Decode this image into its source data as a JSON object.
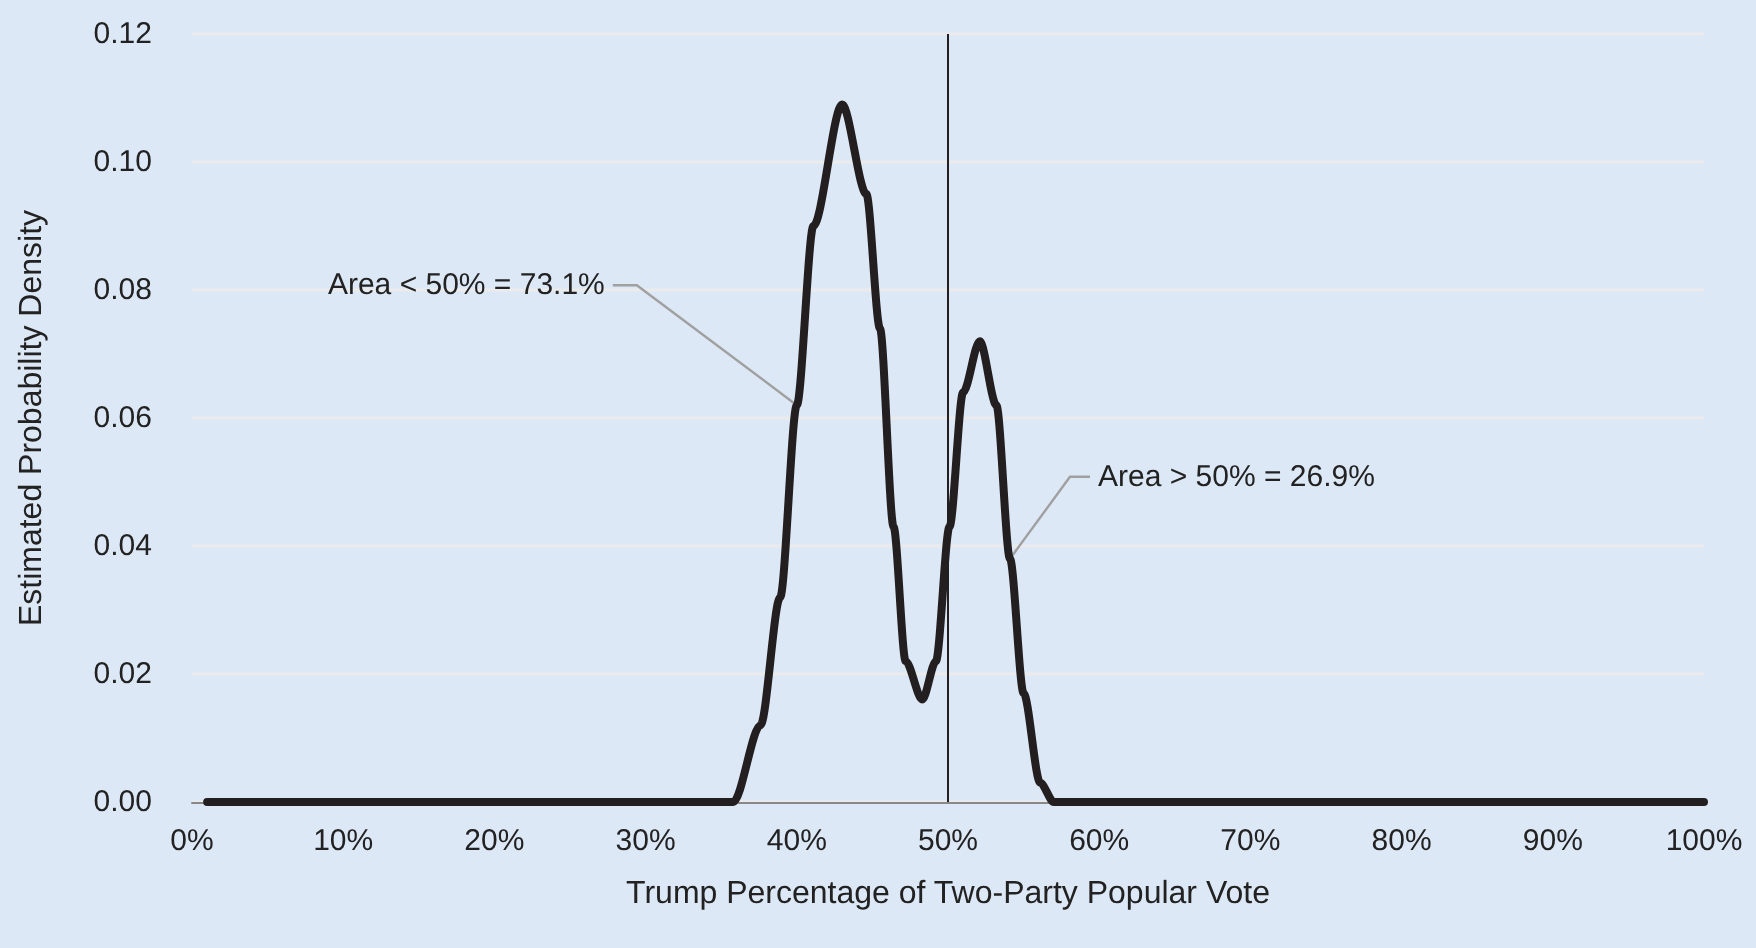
{
  "chart_data": {
    "type": "line",
    "xlabel": "Trump Percentage of Two-Party Popular Vote",
    "ylabel": "Estimated Probability Density",
    "x": [
      1,
      35.8,
      37.6,
      38.9,
      40.0,
      41.1,
      43.0,
      44.6,
      45.5,
      46.4,
      47.2,
      48.3,
      49.2,
      50.1,
      51.0,
      52.1,
      53.2,
      54.1,
      55.0,
      56.1,
      57.0,
      100
    ],
    "series": [
      {
        "color": "#231f20",
        "values": [
          0,
          0,
          0.012,
          0.032,
          0.062,
          0.09,
          0.109,
          0.095,
          0.074,
          0.043,
          0.022,
          0.016,
          0.022,
          0.043,
          0.064,
          0.072,
          0.062,
          0.038,
          0.017,
          0.003,
          0,
          0
        ]
      }
    ],
    "xlim": [
      0,
      100
    ],
    "ylim": [
      0,
      0.12
    ],
    "xticks": [
      {
        "value": 0,
        "label": "0%"
      },
      {
        "value": 10,
        "label": "10%"
      },
      {
        "value": 20,
        "label": "20%"
      },
      {
        "value": 30,
        "label": "30%"
      },
      {
        "value": 40,
        "label": "40%"
      },
      {
        "value": 50,
        "label": "50%"
      },
      {
        "value": 60,
        "label": "60%"
      },
      {
        "value": 70,
        "label": "70%"
      },
      {
        "value": 80,
        "label": "80%"
      },
      {
        "value": 90,
        "label": "90%"
      },
      {
        "value": 100,
        "label": "100%"
      }
    ],
    "yticks": [
      {
        "value": 0,
        "label": "0.00"
      },
      {
        "value": 0.02,
        "label": "0.02"
      },
      {
        "value": 0.04,
        "label": "0.04"
      },
      {
        "value": 0.06,
        "label": "0.06"
      },
      {
        "value": 0.08,
        "label": "0.08"
      },
      {
        "value": 0.1,
        "label": "0.10"
      },
      {
        "value": 0.12,
        "label": "0.12"
      }
    ],
    "grid": "y",
    "marker": "none",
    "line_style": "solid",
    "ref_lines": [
      {
        "axis": "x",
        "value": 50,
        "color": "#231f20"
      }
    ],
    "annotations": [
      {
        "text": "Area < 50% = 73.1%",
        "x": 40.0,
        "y": 0.062
      },
      {
        "text": "Area > 50% = 26.9%",
        "x": 54.1,
        "y": 0.038
      }
    ]
  }
}
